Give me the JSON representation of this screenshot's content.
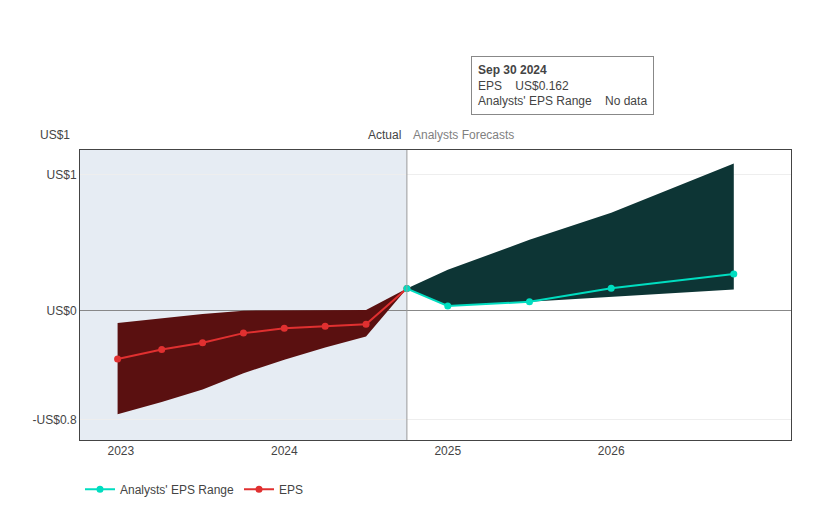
{
  "chart_data": {
    "type": "line",
    "xlim": [
      2022.75,
      2027.1
    ],
    "ylim": [
      -0.95,
      1.18
    ],
    "xticks": [
      2023,
      2024,
      2025,
      2026
    ],
    "yticks": [
      {
        "value": -0.8,
        "label": "-US$0.8"
      },
      {
        "value": 0.0,
        "label": "US$0"
      },
      {
        "value": 1.0,
        "label": "US$1"
      }
    ],
    "grid": true,
    "legend": "bottom left",
    "cutoff_x": 2024.75,
    "annotations": [
      "Actual",
      "Analysts Forecasts",
      "US$1"
    ],
    "tooltip": {
      "title": "Sep 30 2024",
      "rows": [
        {
          "label": "EPS",
          "value": "US$0.162"
        },
        {
          "label": "Analysts' EPS Range",
          "value": "No data"
        }
      ]
    },
    "series": [
      {
        "name": "EPS",
        "color": "#e03030",
        "marker": "circle",
        "x": [
          2022.98,
          2023.25,
          2023.5,
          2023.75,
          2024.0,
          2024.25,
          2024.5,
          2024.75
        ],
        "values": [
          -0.355,
          -0.285,
          -0.235,
          -0.165,
          -0.13,
          -0.115,
          -0.1,
          0.162
        ],
        "band_upper": [
          -0.09,
          -0.055,
          -0.025,
          0.0,
          0.0,
          0.005,
          0.005,
          0.162
        ],
        "band_lower": [
          -0.76,
          -0.67,
          -0.58,
          -0.46,
          -0.36,
          -0.27,
          -0.19,
          0.162
        ],
        "band_color": "#5a1010"
      },
      {
        "name": "Analysts' EPS Range",
        "color": "#00ddc0",
        "marker": "circle",
        "x": [
          2024.75,
          2025.0,
          2025.5,
          2026.0,
          2026.75
        ],
        "values": [
          0.162,
          0.035,
          0.065,
          0.165,
          0.27
        ],
        "band_upper": [
          0.162,
          0.3,
          0.52,
          0.72,
          1.08
        ],
        "band_lower": [
          0.162,
          0.035,
          0.065,
          0.1,
          0.155
        ],
        "band_color": "#0d3535"
      }
    ]
  }
}
